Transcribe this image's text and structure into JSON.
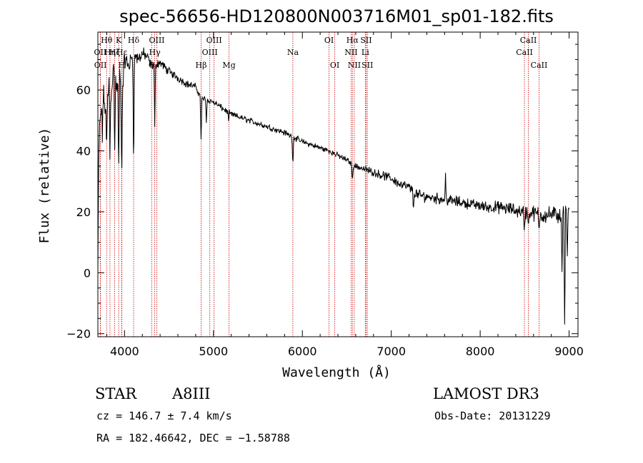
{
  "chart_data": {
    "type": "line",
    "title": "spec-56656-HD120800N003716M01_sp01-182.fits",
    "xlabel": "Wavelength (Å)",
    "ylabel": "Flux (relative)",
    "xlim": [
      3700,
      9100
    ],
    "ylim": [
      -21,
      79
    ],
    "x_ticks": [
      4000,
      5000,
      6000,
      7000,
      8000,
      9000
    ],
    "y_ticks": [
      -20,
      0,
      20,
      40,
      60
    ],
    "x_tick_labels": [
      "4000",
      "5000",
      "6000",
      "7000",
      "8000",
      "9000"
    ],
    "y_tick_labels": [
      "−20",
      "0",
      "20",
      "40",
      "60"
    ],
    "spectrum": {
      "anchors": [
        [
          3700,
          0
        ],
        [
          3712,
          42
        ],
        [
          3730,
          52
        ],
        [
          3760,
          58
        ],
        [
          3800,
          52
        ],
        [
          3830,
          66
        ],
        [
          3850,
          60
        ],
        [
          3880,
          68
        ],
        [
          3910,
          60
        ],
        [
          3940,
          66
        ],
        [
          3970,
          58
        ],
        [
          4000,
          70
        ],
        [
          4050,
          68
        ],
        [
          4100,
          72
        ],
        [
          4150,
          70
        ],
        [
          4200,
          72
        ],
        [
          4250,
          71
        ],
        [
          4300,
          68
        ],
        [
          4400,
          69
        ],
        [
          4500,
          66
        ],
        [
          4600,
          64
        ],
        [
          4700,
          62
        ],
        [
          4800,
          61
        ],
        [
          4850,
          58
        ],
        [
          4900,
          57
        ],
        [
          5000,
          56
        ],
        [
          5100,
          54
        ],
        [
          5200,
          52
        ],
        [
          5300,
          51
        ],
        [
          5400,
          50
        ],
        [
          5500,
          49
        ],
        [
          5600,
          48
        ],
        [
          5700,
          47
        ],
        [
          5800,
          46
        ],
        [
          5900,
          44.5
        ],
        [
          6000,
          43
        ],
        [
          6100,
          42
        ],
        [
          6200,
          41
        ],
        [
          6300,
          40
        ],
        [
          6400,
          38.5
        ],
        [
          6500,
          37
        ],
        [
          6600,
          35
        ],
        [
          6700,
          34
        ],
        [
          6800,
          33
        ],
        [
          6900,
          32
        ],
        [
          7000,
          31
        ],
        [
          7100,
          29
        ],
        [
          7200,
          28
        ],
        [
          7300,
          25.5
        ],
        [
          7400,
          25
        ],
        [
          7500,
          24.5
        ],
        [
          7600,
          24
        ],
        [
          7700,
          23.5
        ],
        [
          7800,
          23
        ],
        [
          7900,
          22.5
        ],
        [
          8000,
          22
        ],
        [
          8100,
          21.5
        ],
        [
          8200,
          21.5
        ],
        [
          8300,
          21
        ],
        [
          8400,
          20.5
        ],
        [
          8500,
          20
        ],
        [
          8600,
          19.5
        ],
        [
          8700,
          19
        ],
        [
          8800,
          19
        ],
        [
          8900,
          19
        ],
        [
          9000,
          19
        ]
      ],
      "features": [
        [
          3750,
          45
        ],
        [
          3798,
          40
        ],
        [
          3836,
          35
        ],
        [
          3889,
          38
        ],
        [
          3934,
          30
        ],
        [
          3968,
          28
        ],
        [
          4102,
          34
        ],
        [
          4340,
          48
        ],
        [
          4861,
          42
        ],
        [
          4920,
          50
        ],
        [
          5170,
          50
        ],
        [
          5893,
          35
        ],
        [
          6563,
          29
        ],
        [
          7250,
          20
        ],
        [
          7610,
          32
        ],
        [
          8498,
          13
        ],
        [
          8542,
          15
        ],
        [
          8662,
          13
        ],
        [
          8920,
          0
        ],
        [
          8950,
          -18
        ],
        [
          8980,
          7
        ]
      ],
      "noise_amplitude": [
        [
          3700,
          6
        ],
        [
          4300,
          2
        ],
        [
          5000,
          1.2
        ],
        [
          6500,
          1.2
        ],
        [
          7200,
          2.2
        ],
        [
          8000,
          2.2
        ],
        [
          8800,
          3.5
        ],
        [
          9000,
          4
        ]
      ]
    },
    "lines": [
      {
        "name": "Hθ",
        "wavelength": 3798,
        "row": 0
      },
      {
        "name": "OII",
        "wavelength": 3727,
        "row": 1
      },
      {
        "name": "OII",
        "wavelength": 3729,
        "row": 2
      },
      {
        "name": "Hη",
        "wavelength": 3836,
        "row": 1
      },
      {
        "name": "Hζ",
        "wavelength": 3889,
        "row": 1
      },
      {
        "name": "K",
        "wavelength": 3934,
        "row": 0
      },
      {
        "name": "H",
        "wavelength": 3968,
        "row": 2
      },
      {
        "name": "Hε",
        "wavelength": 3970,
        "row": 1
      },
      {
        "name": "Hδ",
        "wavelength": 4102,
        "row": 0
      },
      {
        "name": "OIII",
        "wavelength": 4363,
        "row": 0
      },
      {
        "name": "Hγ",
        "wavelength": 4340,
        "row": 1
      },
      {
        "name": "G",
        "wavelength": 4305,
        "row": 2
      },
      {
        "name": "Hβ",
        "wavelength": 4861,
        "row": 2
      },
      {
        "name": "OIII",
        "wavelength": 4959,
        "row": 1
      },
      {
        "name": "OIII",
        "wavelength": 5007,
        "row": 0
      },
      {
        "name": "Mg",
        "wavelength": 5175,
        "row": 2
      },
      {
        "name": "Na",
        "wavelength": 5893,
        "row": 1
      },
      {
        "name": "OI",
        "wavelength": 6300,
        "row": 0
      },
      {
        "name": "OI",
        "wavelength": 6364,
        "row": 2
      },
      {
        "name": "NII",
        "wavelength": 6548,
        "row": 1
      },
      {
        "name": "NII",
        "wavelength": 6584,
        "row": 2
      },
      {
        "name": "Hα",
        "wavelength": 6563,
        "row": 0
      },
      {
        "name": "SII",
        "wavelength": 6717,
        "row": 0
      },
      {
        "name": "SII",
        "wavelength": 6731,
        "row": 2
      },
      {
        "name": "Li",
        "wavelength": 6708,
        "row": 1
      },
      {
        "name": "CaII",
        "wavelength": 8498,
        "row": 1
      },
      {
        "name": "CaII",
        "wavelength": 8542,
        "row": 0
      },
      {
        "name": "CaII",
        "wavelength": 8662,
        "row": 2
      }
    ]
  },
  "info": {
    "class": "STAR",
    "subclass": "A8III",
    "survey": "LAMOST DR3",
    "cz": "cz = 146.7 ± 7.4 km/s",
    "obsdate": "Obs-Date: 20131229",
    "radec": "RA = 182.46642, DEC =  −1.58788"
  },
  "colors": {
    "line_marker": "#cc0000",
    "spectrum": "#000000"
  }
}
